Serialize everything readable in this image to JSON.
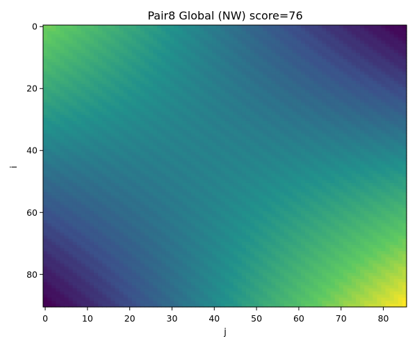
{
  "chart_data": {
    "type": "heatmap",
    "title": "Pair8 Global (NW) score=76",
    "xlabel": "j",
    "ylabel": "i",
    "xlim": [
      0,
      85
    ],
    "ylim": [
      0,
      90
    ],
    "y_inverted": true,
    "colormap": "viridis",
    "colormap_stops": [
      "#440154",
      "#3b528b",
      "#21918c",
      "#5ec962",
      "#fde725"
    ],
    "x_ticks": [
      0,
      10,
      20,
      30,
      40,
      50,
      60,
      70,
      80
    ],
    "y_ticks": [
      0,
      20,
      40,
      60,
      80
    ],
    "corner_values": {
      "top_left": 0.78,
      "top_right": 0.0,
      "bottom_left": 0.0,
      "bottom_right": 1.0
    },
    "grid": false,
    "legend": "none"
  }
}
